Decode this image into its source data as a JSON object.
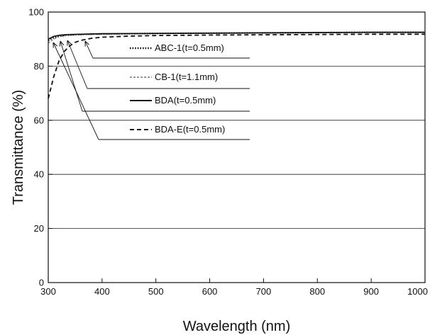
{
  "chart_data": {
    "type": "line",
    "xlabel": "Wavelength (nm)",
    "ylabel": "Transmittance (%)",
    "xlim": [
      300,
      1000
    ],
    "ylim": [
      0,
      100
    ],
    "x_ticks": [
      300,
      400,
      500,
      600,
      700,
      800,
      900,
      1000
    ],
    "y_ticks": [
      0,
      20,
      40,
      60,
      80,
      100
    ],
    "grid": "horizontal",
    "legend_placement": "top-center inside plot with leader arrows",
    "series": [
      {
        "name": "ABC-1(t=0.5mm)",
        "style": "dotted",
        "points": [
          [
            300,
            89.5
          ],
          [
            310,
            90.5
          ],
          [
            320,
            91
          ],
          [
            330,
            91.3
          ],
          [
            340,
            91.5
          ],
          [
            360,
            91.7
          ],
          [
            380,
            91.8
          ],
          [
            400,
            91.9
          ],
          [
            500,
            92.1
          ],
          [
            600,
            92.2
          ],
          [
            700,
            92.3
          ],
          [
            800,
            92.4
          ],
          [
            900,
            92.5
          ],
          [
            1000,
            92.5
          ]
        ]
      },
      {
        "name": "CB-1(t=1.1mm)",
        "style": "dashed-fine",
        "points": [
          [
            300,
            88.5
          ],
          [
            310,
            90
          ],
          [
            320,
            90.8
          ],
          [
            330,
            91.2
          ],
          [
            340,
            91.4
          ],
          [
            360,
            91.6
          ],
          [
            380,
            91.7
          ],
          [
            400,
            91.8
          ],
          [
            500,
            92
          ],
          [
            600,
            92.1
          ],
          [
            700,
            92.2
          ],
          [
            800,
            92.3
          ],
          [
            900,
            92.4
          ],
          [
            1000,
            92.4
          ]
        ]
      },
      {
        "name": "BDA(t=0.5mm)",
        "style": "solid",
        "points": [
          [
            300,
            90
          ],
          [
            310,
            91
          ],
          [
            320,
            91.4
          ],
          [
            330,
            91.6
          ],
          [
            340,
            91.7
          ],
          [
            360,
            91.8
          ],
          [
            380,
            91.9
          ],
          [
            400,
            92
          ],
          [
            500,
            92.1
          ],
          [
            600,
            92.2
          ],
          [
            700,
            92.3
          ],
          [
            800,
            92.4
          ],
          [
            900,
            92.5
          ],
          [
            1000,
            92.5
          ]
        ]
      },
      {
        "name": "BDA-E(t=0.5mm)",
        "style": "dashed",
        "points": [
          [
            300,
            68
          ],
          [
            310,
            76
          ],
          [
            320,
            82
          ],
          [
            330,
            85.5
          ],
          [
            340,
            87.5
          ],
          [
            350,
            88.8
          ],
          [
            360,
            89.5
          ],
          [
            380,
            90.3
          ],
          [
            400,
            90.7
          ],
          [
            450,
            91.1
          ],
          [
            500,
            91.3
          ],
          [
            600,
            91.5
          ],
          [
            700,
            91.6
          ],
          [
            800,
            91.7
          ],
          [
            900,
            91.8
          ],
          [
            1000,
            91.8
          ]
        ]
      }
    ],
    "colors": {
      "line": "#111111",
      "grid": "#222222",
      "legend_dashed_gray": "#777777"
    }
  }
}
